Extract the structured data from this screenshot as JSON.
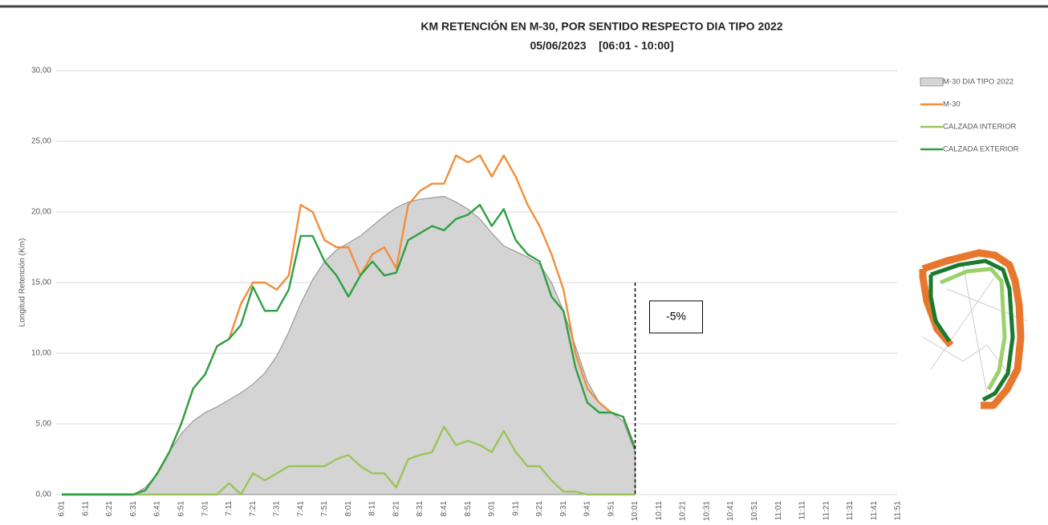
{
  "chart_data": {
    "type": "line",
    "title": "KM RETENCIÓN EN M-30, POR SENTIDO RESPECTO DIA TIPO 2022",
    "subtitle": "05/06/2023    [06:01 - 10:00]",
    "y_label": "Longitud Retención (Km)",
    "annotation": "-5%",
    "categories": [
      "6:01",
      null,
      "6:11",
      null,
      "6:21",
      null,
      "6:31",
      null,
      "6:41",
      null,
      "6:51",
      null,
      "7:01",
      null,
      "7:11",
      null,
      "7:21",
      null,
      "7:31",
      null,
      "7:41",
      null,
      "7:51",
      null,
      "8:01",
      null,
      "8:11",
      null,
      "8:21",
      null,
      "8:31",
      null,
      "8:41",
      null,
      "8:51",
      null,
      "9:01",
      null,
      "9:11",
      null,
      "9:21",
      null,
      "9:31",
      null,
      "9:41",
      null,
      "9:51",
      null,
      "10:01",
      null,
      "10:11",
      null,
      "10:21",
      null,
      "10:31",
      null,
      "10:41",
      null,
      "10:51",
      null,
      "11:01",
      null,
      "11:11",
      null,
      "11:21",
      null,
      "11:31",
      null,
      "11:41",
      null,
      "11:51",
      null
    ],
    "ylim": [
      0,
      30
    ],
    "yticks": [
      {
        "value": 0,
        "label": "0,00"
      },
      {
        "value": 5,
        "label": "5,00"
      },
      {
        "value": 10,
        "label": "10,00"
      },
      {
        "value": 15,
        "label": "15,00"
      },
      {
        "value": 20,
        "label": "20,00"
      },
      {
        "value": 25,
        "label": "25,00"
      },
      {
        "value": 30,
        "label": "30,00"
      }
    ],
    "grid": true,
    "legend": "right",
    "series": [
      {
        "name": "M-30 DIA TIPO 2022",
        "kind": "area",
        "color": "#d4d4d4",
        "values": [
          0,
          0,
          0,
          0,
          0,
          0,
          0,
          0.5,
          1.5,
          3,
          4.3,
          5.2,
          5.8,
          6.2,
          6.7,
          7.2,
          7.8,
          8.6,
          9.8,
          11.5,
          13.5,
          15.2,
          16.5,
          17.3,
          17.8,
          18.3,
          19,
          19.7,
          20.3,
          20.7,
          20.9,
          21,
          21.1,
          20.7,
          20.2,
          19.5,
          18.5,
          17.6,
          17.2,
          16.8,
          16.3,
          15,
          13,
          10.5,
          8,
          6.5,
          5.8,
          5.2,
          3,
          null,
          null,
          null,
          null,
          null,
          null,
          null,
          null,
          null,
          null,
          null,
          null,
          null,
          null,
          null,
          null,
          null,
          null,
          null,
          null,
          null,
          null,
          null
        ]
      },
      {
        "name": "M-30",
        "kind": "line",
        "color": "#f28e3c",
        "values": [
          0,
          0,
          0,
          0,
          0,
          0,
          0,
          0.3,
          1.5,
          3,
          5,
          7.5,
          8.5,
          10.5,
          11,
          13.5,
          15,
          15,
          14.5,
          15.5,
          20.5,
          20,
          18,
          17.5,
          17.5,
          15.5,
          17,
          17.5,
          16,
          20.5,
          21.5,
          22,
          22,
          24,
          23.5,
          24,
          22.5,
          24,
          22.5,
          20.5,
          19,
          17,
          14.5,
          10,
          7.5,
          6.5,
          5.8,
          5.5,
          3.3,
          null,
          null,
          null,
          null,
          null,
          null,
          null,
          null,
          null,
          null,
          null,
          null,
          null,
          null,
          null,
          null,
          null,
          null,
          null,
          null,
          null,
          null,
          null
        ]
      },
      {
        "name": "CALZADA INTERIOR",
        "kind": "line",
        "color": "#9bc45a",
        "values": [
          0,
          0,
          0,
          0,
          0,
          0,
          0,
          0,
          0,
          0,
          0,
          0,
          0,
          0,
          0.8,
          0,
          1.5,
          1,
          1.5,
          2,
          2,
          2,
          2,
          2.5,
          2.8,
          2,
          1.5,
          1.5,
          0.5,
          2.5,
          2.8,
          3,
          4.8,
          3.5,
          3.8,
          3.5,
          3,
          4.5,
          3,
          2,
          2,
          1,
          0.2,
          0.2,
          0,
          0,
          0,
          0,
          0,
          null,
          null,
          null,
          null,
          null,
          null,
          null,
          null,
          null,
          null,
          null,
          null,
          null,
          null,
          null,
          null,
          null,
          null,
          null,
          null,
          null,
          null,
          null
        ]
      },
      {
        "name": "CALZADA EXTERIOR",
        "kind": "line",
        "color": "#2ea043",
        "values": [
          0,
          0,
          0,
          0,
          0,
          0,
          0,
          0.3,
          1.5,
          3,
          5,
          7.5,
          8.5,
          10.5,
          11,
          12,
          14.7,
          13,
          13,
          14.5,
          18.3,
          18.3,
          16.5,
          15.5,
          14,
          15.5,
          16.5,
          15.5,
          15.7,
          18,
          18.5,
          19,
          18.7,
          19.5,
          19.8,
          20.5,
          19,
          20.2,
          18,
          17,
          16.5,
          14,
          13,
          9,
          6.5,
          5.8,
          5.8,
          5.5,
          3.2,
          null,
          null,
          null,
          null,
          null,
          null,
          null,
          null,
          null,
          null,
          null,
          null,
          null,
          null,
          null,
          null,
          null,
          null,
          null,
          null,
          null,
          null,
          null
        ]
      }
    ]
  }
}
